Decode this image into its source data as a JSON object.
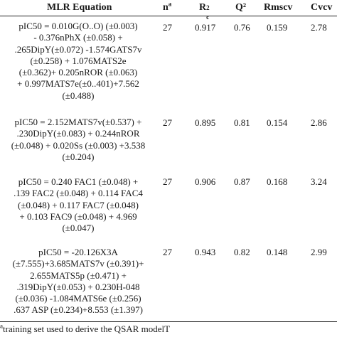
{
  "header": {
    "equation": "MLR Equation",
    "n_base": "n",
    "n_sup": "a",
    "r2_base": "R",
    "r2_sup": "2",
    "r2_sub": "c",
    "q2": "Q²",
    "rmscv": "Rmscv",
    "cvcv": "Cvcv"
  },
  "rows": [
    {
      "equation_lines": [
        "pIC50 = 0.010G(O..O) (±0.003)",
        "- 0.376nPhX (±0.058) +",
        ".265DipY(±0.072) -1.574GATS7v",
        "(±0.258) + 1.076MATS2e",
        "(±0.362)+ 0.205nROR (±0.063)",
        "+ 0.997MATS7e(±0..401)+7.562",
        "(±0.488)"
      ],
      "n": "27",
      "r2c": "0.917",
      "q2": "0.76",
      "rmscv": "0.159",
      "cvcv": "2.78"
    },
    {
      "equation_lines": [
        "pIC50 = 2.152MATS7v(±0.537) +",
        ".230DipY(±0.083) + 0.244nROR",
        "(±0.048) + 0.020Ss (±0.003) +3.538",
        "(±0.204)"
      ],
      "n": "27",
      "r2c": "0.895",
      "q2": "0.81",
      "rmscv": "0.154",
      "cvcv": "2.86"
    },
    {
      "equation_lines": [
        "pIC50 = 0.240 FAC1 (±0.048) +",
        ".139 FAC2 (±0.048) + 0.114 FAC4",
        "(±0.048) + 0.117 FAC7 (±0.048)",
        "+ 0.103 FAC9 (±0.048)  + 4.969",
        "(±0.047)"
      ],
      "n": "27",
      "r2c": "0.906",
      "q2": "0.87",
      "rmscv": "0.168",
      "cvcv": "3.24"
    },
    {
      "equation_lines": [
        "pIC50 = -20.126X3A",
        "(±7.555)+3.685MATS7v (±0.391)+",
        "2.655MATS5p (±0.471) +",
        ".319DipY(±0.053) + 0.230H-048",
        "(±0.036) -1.084MATS6e (±0.256)",
        ".637 ASP (±0.234)+8.553 (±1.397)"
      ],
      "n": "27",
      "r2c": "0.943",
      "q2": "0.82",
      "rmscv": "0.148",
      "cvcv": "2.99"
    }
  ],
  "footnote": {
    "sup": "a",
    "text": "training set used to derive the QSAR modelT"
  }
}
